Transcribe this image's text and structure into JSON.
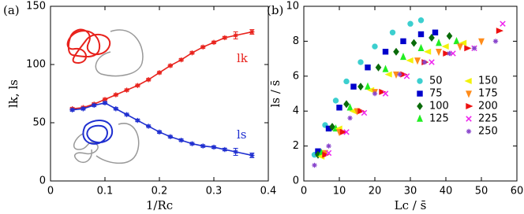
{
  "chart_data": [
    {
      "type": "line",
      "panel_label": "(a)",
      "xlabel": "1/Rc",
      "ylabel": "lk, ls",
      "xlim": [
        0,
        0.4
      ],
      "xticks": [
        0,
        0.1,
        0.2,
        0.3,
        0.4
      ],
      "ylim": [
        0,
        150
      ],
      "yticks": [
        0,
        50,
        100,
        150
      ],
      "x": [
        0.04,
        0.06,
        0.08,
        0.1,
        0.12,
        0.14,
        0.16,
        0.18,
        0.2,
        0.22,
        0.24,
        0.26,
        0.28,
        0.3,
        0.32,
        0.34,
        0.37
      ],
      "series": [
        {
          "name": "lk",
          "color": "#e8221c",
          "values": [
            62,
            63,
            66,
            70,
            74,
            78,
            82,
            87,
            93,
            99,
            104,
            110,
            115,
            119,
            123,
            125,
            128
          ],
          "errors": [
            1,
            1,
            1,
            1,
            1,
            1,
            1,
            1,
            1,
            1,
            1,
            1,
            1,
            1,
            1,
            3,
            2
          ]
        },
        {
          "name": "ls",
          "color": "#1f2fd0",
          "values": [
            61,
            62,
            65,
            67,
            62,
            57,
            52,
            47,
            42,
            38,
            35,
            32,
            30,
            29,
            27,
            25,
            22
          ],
          "errors": [
            1,
            1,
            1,
            1,
            1,
            1,
            1,
            1,
            1,
            1,
            1,
            1,
            1,
            1,
            1,
            3,
            2
          ]
        }
      ]
    },
    {
      "type": "scatter",
      "panel_label": "(b)",
      "xlabel": "Lc / s̄",
      "ylabel": "ls / s̄",
      "xlim": [
        0,
        60
      ],
      "xticks": [
        0,
        10,
        20,
        30,
        40,
        50,
        60
      ],
      "ylim": [
        0,
        10
      ],
      "yticks": [
        0,
        2,
        4,
        6,
        8,
        10
      ],
      "legend": "right",
      "series": [
        {
          "name": "50",
          "color": "#3ccfcf",
          "marker": "circle",
          "x": [
            3,
            6,
            9,
            12,
            16,
            20,
            25,
            30,
            33
          ],
          "values": [
            1.5,
            3.2,
            4.6,
            5.7,
            6.8,
            7.7,
            8.5,
            9.0,
            9.2
          ]
        },
        {
          "name": "75",
          "color": "#0000cc",
          "marker": "square",
          "x": [
            4,
            7,
            10,
            14,
            18,
            23,
            28,
            33,
            37
          ],
          "values": [
            1.7,
            3.0,
            4.2,
            5.4,
            6.5,
            7.4,
            8.0,
            8.4,
            8.5
          ]
        },
        {
          "name": "100",
          "color": "#0a6b0a",
          "marker": "diamond",
          "x": [
            4,
            8,
            12,
            16,
            21,
            26,
            31,
            36,
            41
          ],
          "values": [
            1.5,
            3.1,
            4.4,
            5.4,
            6.5,
            7.4,
            7.9,
            8.2,
            8.3
          ]
        },
        {
          "name": "125",
          "color": "#22ee22",
          "marker": "triangle-up",
          "x": [
            5,
            9,
            13,
            18,
            23,
            28,
            33,
            38,
            43
          ],
          "values": [
            1.6,
            3.0,
            4.2,
            5.4,
            6.4,
            7.1,
            7.6,
            7.9,
            8.0
          ]
        },
        {
          "name": "150",
          "color": "#f2f20a",
          "marker": "triangle-left",
          "x": [
            5,
            10,
            14,
            19,
            24,
            30,
            35,
            40,
            45
          ],
          "values": [
            1.4,
            3.0,
            4.0,
            5.2,
            6.1,
            6.9,
            7.4,
            7.7,
            7.9
          ]
        },
        {
          "name": "175",
          "color": "#ff8c1a",
          "marker": "triangle-down",
          "x": [
            6,
            10,
            15,
            20,
            26,
            32,
            38,
            44,
            50
          ],
          "values": [
            1.6,
            2.8,
            4.0,
            5.1,
            6.1,
            6.9,
            7.4,
            7.7,
            8.0
          ]
        },
        {
          "name": "200",
          "color": "#ee1111",
          "marker": "triangle-right",
          "x": [
            6,
            11,
            16,
            22,
            28,
            34,
            40,
            46,
            55
          ],
          "values": [
            1.5,
            2.8,
            4.0,
            5.1,
            6.1,
            6.8,
            7.3,
            7.6,
            8.6
          ]
        },
        {
          "name": "225",
          "color": "#ee22ee",
          "marker": "x",
          "x": [
            7,
            12,
            17,
            23,
            29,
            36,
            42,
            48,
            56
          ],
          "values": [
            1.6,
            2.8,
            3.9,
            5.0,
            6.0,
            6.8,
            7.3,
            7.6,
            9.0
          ]
        },
        {
          "name": "250",
          "color": "#8844cc",
          "marker": "star",
          "x": [
            3,
            7,
            13,
            20,
            27,
            34,
            41,
            48,
            54
          ],
          "values": [
            0.9,
            2.0,
            3.6,
            5.0,
            6.1,
            6.8,
            7.3,
            7.6,
            8.0
          ]
        }
      ]
    }
  ]
}
